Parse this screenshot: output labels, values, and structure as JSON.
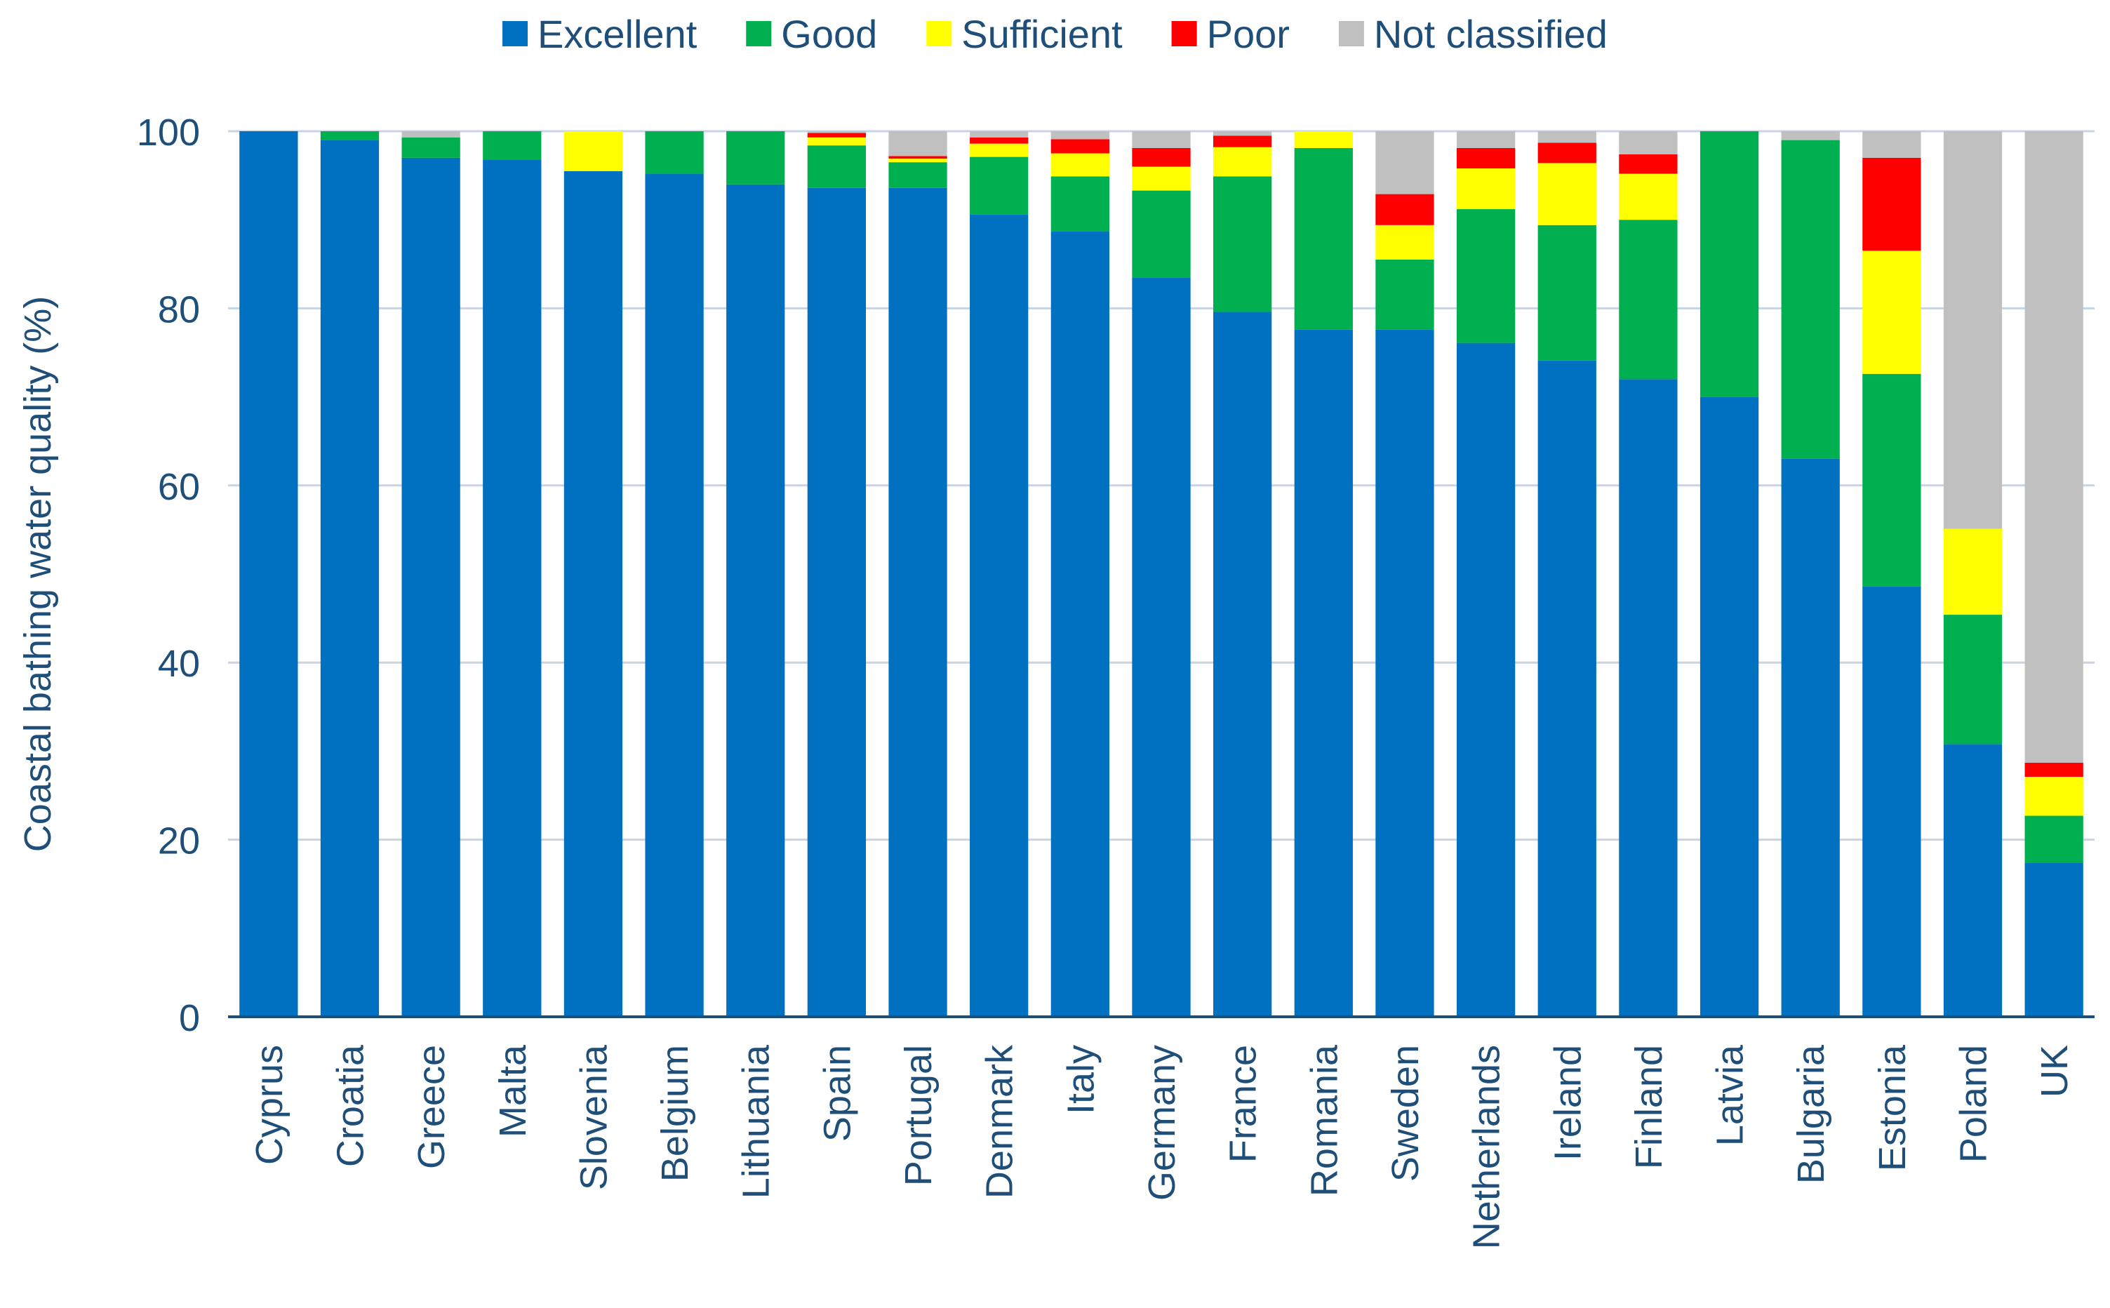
{
  "chart_data": {
    "type": "bar",
    "stacked": true,
    "title": "",
    "xlabel": "",
    "ylabel": "Coastal bathing water quality (%)",
    "ylim": [
      0,
      100
    ],
    "yticks": [
      0,
      20,
      40,
      60,
      80,
      100
    ],
    "grid": true,
    "legend_position": "top-center",
    "categories": [
      "Cyprus",
      "Croatia",
      "Greece",
      "Malta",
      "Slovenia",
      "Belgium",
      "Lithuania",
      "Spain",
      "Portugal",
      "Denmark",
      "Italy",
      "Germany",
      "France",
      "Romania",
      "Sweden",
      "Netherlands",
      "Ireland",
      "Finland",
      "Latvia",
      "Bulgaria",
      "Estonia",
      "Poland",
      "UK"
    ],
    "series": [
      {
        "name": "Excellent",
        "color": "#0070C0",
        "values": [
          100,
          99,
          97,
          96.8,
          95.5,
          95.2,
          94,
          93.6,
          93.6,
          90.6,
          88.7,
          83.5,
          79.6,
          77.6,
          77.6,
          76.1,
          74.1,
          72,
          70,
          63,
          48.6,
          30.8,
          17.4
        ]
      },
      {
        "name": "Good",
        "color": "#00B050",
        "values": [
          0,
          1,
          2.3,
          3.2,
          0,
          4.8,
          6,
          4.8,
          2.9,
          6.5,
          6.2,
          9.8,
          15.3,
          20.5,
          7.9,
          15.1,
          15.3,
          18,
          30,
          36,
          24,
          14.6,
          5.3
        ]
      },
      {
        "name": "Sufficient",
        "color": "#FFFF00",
        "values": [
          0,
          0,
          0,
          0,
          4.5,
          0,
          0,
          0.9,
          0.4,
          1.5,
          2.6,
          2.7,
          3.3,
          1.9,
          3.9,
          4.6,
          7,
          5.2,
          0,
          0,
          13.9,
          9.7,
          4.4
        ]
      },
      {
        "name": "Poor",
        "color": "#FF0000",
        "values": [
          0,
          0,
          0,
          0,
          0,
          0,
          0,
          0.5,
          0.3,
          0.7,
          1.6,
          2.1,
          1.3,
          0,
          3.5,
          2.3,
          2.3,
          2.2,
          0,
          0,
          10.5,
          0,
          1.6
        ]
      },
      {
        "name": "Not classified",
        "color": "#C0C0C0",
        "values": [
          0,
          0,
          0.7,
          0,
          0,
          0,
          0,
          0.2,
          2.8,
          0.7,
          0.9,
          1.9,
          0.5,
          0,
          7.1,
          1.9,
          1.3,
          2.6,
          0,
          1,
          3,
          44.9,
          71.3
        ]
      }
    ]
  },
  "colors": {
    "axis_text": "#1F4E79",
    "gridline": "#C8D4E3",
    "axis_line": "#1F4E79"
  }
}
